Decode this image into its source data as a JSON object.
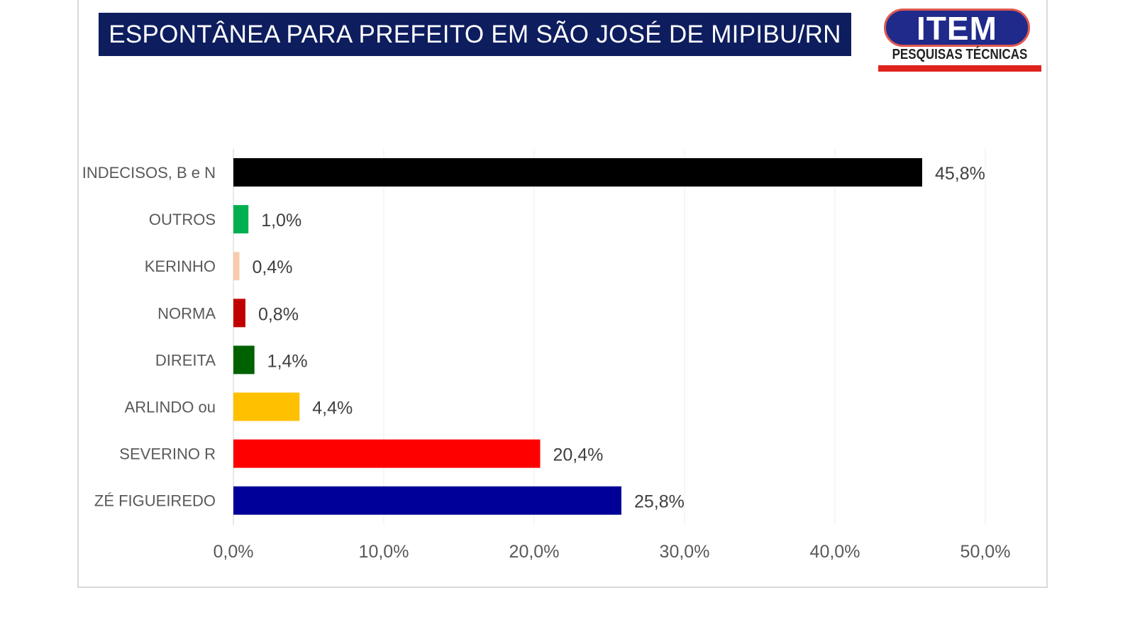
{
  "chart_data": {
    "type": "bar",
    "orientation": "horizontal",
    "title": "ESPONTÂNEA PARA PREFEITO EM SÃO JOSÉ DE MIPIBU/RN",
    "categories": [
      "INDECISOS, B e N",
      "OUTROS",
      "KERINHO",
      "NORMA",
      "DIREITA",
      "ARLINDO ou",
      "SEVERINO R",
      "ZÉ FIGUEIREDO"
    ],
    "values": [
      45.8,
      1.0,
      0.4,
      0.8,
      1.4,
      4.4,
      20.4,
      25.8
    ],
    "value_labels": [
      "45,8%",
      "1,0%",
      "0,4%",
      "0,8%",
      "1,4%",
      "4,4%",
      "20,4%",
      "25,8%"
    ],
    "colors": [
      "#000000",
      "#00b050",
      "#f8cbad",
      "#c00000",
      "#006100",
      "#ffc000",
      "#ff0000",
      "#000099"
    ],
    "xlim": [
      0,
      50
    ],
    "xticks": [
      0,
      10,
      20,
      30,
      40,
      50
    ],
    "xtick_labels": [
      "0,0%",
      "10,0%",
      "20,0%",
      "30,0%",
      "40,0%",
      "50,0%"
    ],
    "xlabel": "",
    "ylabel": "",
    "grid": true,
    "legend": "none"
  },
  "logo": {
    "name": "ITEM",
    "subtitle": "PESQUISAS TÉCNICAS"
  }
}
